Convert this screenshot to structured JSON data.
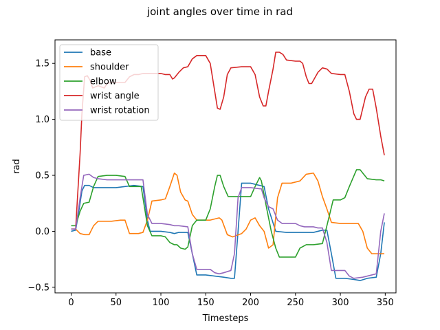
{
  "chart_data": {
    "type": "line",
    "title": "joint angles over time in rad",
    "xlabel": "Timesteps",
    "ylabel": "rad",
    "xlim": [
      -18,
      362
    ],
    "ylim": [
      -0.55,
      1.71
    ],
    "xticks": [
      0,
      50,
      100,
      150,
      200,
      250,
      300,
      350
    ],
    "yticks": [
      -0.5,
      0.0,
      0.5,
      1.0,
      1.5
    ],
    "xtick_labels": [
      "0",
      "50",
      "100",
      "150",
      "200",
      "250",
      "300",
      "350"
    ],
    "ytick_labels": [
      "−0.5",
      "0.0",
      "0.5",
      "1.0",
      "1.5"
    ],
    "grid": false,
    "legend_position": "top-left",
    "series": [
      {
        "name": "base",
        "color": "#1f77b4",
        "points": [
          [
            0,
            0.0
          ],
          [
            5,
            0.01
          ],
          [
            8,
            0.15
          ],
          [
            12,
            0.36
          ],
          [
            15,
            0.41
          ],
          [
            20,
            0.41
          ],
          [
            25,
            0.39
          ],
          [
            50,
            0.39
          ],
          [
            60,
            0.4
          ],
          [
            70,
            0.41
          ],
          [
            80,
            0.4
          ],
          [
            85,
            0.1
          ],
          [
            88,
            0.0
          ],
          [
            100,
            0.0
          ],
          [
            110,
            -0.01
          ],
          [
            115,
            -0.02
          ],
          [
            120,
            -0.01
          ],
          [
            130,
            -0.01
          ],
          [
            135,
            -0.2
          ],
          [
            140,
            -0.39
          ],
          [
            150,
            -0.39
          ],
          [
            160,
            -0.4
          ],
          [
            170,
            -0.41
          ],
          [
            178,
            -0.42
          ],
          [
            182,
            -0.42
          ],
          [
            186,
            0.0
          ],
          [
            190,
            0.43
          ],
          [
            200,
            0.43
          ],
          [
            210,
            0.41
          ],
          [
            215,
            0.4
          ],
          [
            220,
            0.2
          ],
          [
            228,
            0.0
          ],
          [
            240,
            -0.01
          ],
          [
            260,
            -0.01
          ],
          [
            270,
            -0.01
          ],
          [
            280,
            0.01
          ],
          [
            285,
            0.01
          ],
          [
            290,
            -0.2
          ],
          [
            295,
            -0.42
          ],
          [
            305,
            -0.42
          ],
          [
            315,
            -0.43
          ],
          [
            322,
            -0.44
          ],
          [
            330,
            -0.42
          ],
          [
            340,
            -0.41
          ],
          [
            345,
            -0.2
          ],
          [
            349,
            0.08
          ]
        ]
      },
      {
        "name": "shoulder",
        "color": "#ff7f0e",
        "points": [
          [
            0,
            0.02
          ],
          [
            5,
            0.02
          ],
          [
            10,
            -0.02
          ],
          [
            15,
            -0.03
          ],
          [
            20,
            -0.03
          ],
          [
            25,
            0.05
          ],
          [
            30,
            0.09
          ],
          [
            45,
            0.09
          ],
          [
            55,
            0.1
          ],
          [
            60,
            0.1
          ],
          [
            65,
            -0.02
          ],
          [
            75,
            -0.02
          ],
          [
            80,
            -0.01
          ],
          [
            85,
            0.1
          ],
          [
            90,
            0.27
          ],
          [
            100,
            0.28
          ],
          [
            105,
            0.29
          ],
          [
            110,
            0.4
          ],
          [
            115,
            0.52
          ],
          [
            118,
            0.5
          ],
          [
            122,
            0.35
          ],
          [
            127,
            0.28
          ],
          [
            130,
            0.27
          ],
          [
            135,
            0.15
          ],
          [
            140,
            0.1
          ],
          [
            155,
            0.1
          ],
          [
            160,
            0.11
          ],
          [
            165,
            0.12
          ],
          [
            168,
            0.1
          ],
          [
            174,
            -0.03
          ],
          [
            180,
            -0.05
          ],
          [
            190,
            -0.02
          ],
          [
            195,
            0.02
          ],
          [
            200,
            0.1
          ],
          [
            205,
            0.12
          ],
          [
            210,
            0.05
          ],
          [
            215,
            0.0
          ],
          [
            220,
            -0.15
          ],
          [
            225,
            -0.12
          ],
          [
            230,
            0.3
          ],
          [
            235,
            0.43
          ],
          [
            245,
            0.43
          ],
          [
            250,
            0.44
          ],
          [
            255,
            0.45
          ],
          [
            262,
            0.51
          ],
          [
            270,
            0.52
          ],
          [
            275,
            0.45
          ],
          [
            280,
            0.31
          ],
          [
            285,
            0.2
          ],
          [
            290,
            0.08
          ],
          [
            300,
            0.07
          ],
          [
            310,
            0.07
          ],
          [
            315,
            0.07
          ],
          [
            320,
            0.07
          ],
          [
            325,
            0.0
          ],
          [
            330,
            -0.15
          ],
          [
            335,
            -0.2
          ],
          [
            349,
            -0.2
          ]
        ]
      },
      {
        "name": "elbow",
        "color": "#2ca02c",
        "points": [
          [
            0,
            0.05
          ],
          [
            5,
            0.05
          ],
          [
            10,
            0.18
          ],
          [
            14,
            0.25
          ],
          [
            20,
            0.26
          ],
          [
            25,
            0.4
          ],
          [
            30,
            0.49
          ],
          [
            40,
            0.5
          ],
          [
            50,
            0.5
          ],
          [
            60,
            0.49
          ],
          [
            65,
            0.4
          ],
          [
            70,
            0.4
          ],
          [
            78,
            0.4
          ],
          [
            85,
            0.05
          ],
          [
            90,
            -0.04
          ],
          [
            100,
            -0.04
          ],
          [
            105,
            -0.05
          ],
          [
            110,
            -0.1
          ],
          [
            115,
            -0.12
          ],
          [
            118,
            -0.12
          ],
          [
            122,
            -0.15
          ],
          [
            127,
            -0.16
          ],
          [
            130,
            -0.14
          ],
          [
            135,
            0.05
          ],
          [
            140,
            0.1
          ],
          [
            150,
            0.1
          ],
          [
            155,
            0.2
          ],
          [
            160,
            0.4
          ],
          [
            163,
            0.5
          ],
          [
            166,
            0.5
          ],
          [
            170,
            0.4
          ],
          [
            175,
            0.31
          ],
          [
            190,
            0.31
          ],
          [
            200,
            0.31
          ],
          [
            205,
            0.4
          ],
          [
            210,
            0.48
          ],
          [
            212,
            0.45
          ],
          [
            218,
            0.2
          ],
          [
            223,
            0.0
          ],
          [
            228,
            -0.15
          ],
          [
            232,
            -0.23
          ],
          [
            250,
            -0.23
          ],
          [
            255,
            -0.15
          ],
          [
            262,
            -0.12
          ],
          [
            270,
            -0.12
          ],
          [
            280,
            -0.11
          ],
          [
            285,
            0.05
          ],
          [
            292,
            0.28
          ],
          [
            300,
            0.28
          ],
          [
            305,
            0.3
          ],
          [
            310,
            0.4
          ],
          [
            318,
            0.55
          ],
          [
            322,
            0.55
          ],
          [
            330,
            0.47
          ],
          [
            340,
            0.46
          ],
          [
            345,
            0.46
          ],
          [
            349,
            0.45
          ]
        ]
      },
      {
        "name": "wrist angle",
        "color": "#d62728",
        "points": [
          [
            0,
            0.02
          ],
          [
            5,
            0.02
          ],
          [
            10,
            0.7
          ],
          [
            12,
            1.05
          ],
          [
            15,
            1.38
          ],
          [
            18,
            1.39
          ],
          [
            21,
            1.35
          ],
          [
            24,
            1.28
          ],
          [
            30,
            1.3
          ],
          [
            37,
            1.28
          ],
          [
            40,
            1.32
          ],
          [
            45,
            1.33
          ],
          [
            55,
            1.33
          ],
          [
            60,
            1.33
          ],
          [
            65,
            1.38
          ],
          [
            70,
            1.4
          ],
          [
            75,
            1.4
          ],
          [
            80,
            1.41
          ],
          [
            85,
            1.41
          ],
          [
            95,
            1.41
          ],
          [
            100,
            1.41
          ],
          [
            105,
            1.4
          ],
          [
            110,
            1.4
          ],
          [
            113,
            1.36
          ],
          [
            115,
            1.37
          ],
          [
            120,
            1.42
          ],
          [
            125,
            1.46
          ],
          [
            130,
            1.47
          ],
          [
            135,
            1.54
          ],
          [
            140,
            1.57
          ],
          [
            150,
            1.57
          ],
          [
            155,
            1.5
          ],
          [
            160,
            1.25
          ],
          [
            163,
            1.1
          ],
          [
            166,
            1.09
          ],
          [
            170,
            1.2
          ],
          [
            174,
            1.4
          ],
          [
            178,
            1.46
          ],
          [
            190,
            1.47
          ],
          [
            200,
            1.47
          ],
          [
            205,
            1.4
          ],
          [
            210,
            1.2
          ],
          [
            214,
            1.12
          ],
          [
            217,
            1.12
          ],
          [
            220,
            1.25
          ],
          [
            225,
            1.45
          ],
          [
            228,
            1.6
          ],
          [
            232,
            1.6
          ],
          [
            236,
            1.58
          ],
          [
            240,
            1.53
          ],
          [
            250,
            1.52
          ],
          [
            255,
            1.52
          ],
          [
            258,
            1.5
          ],
          [
            262,
            1.38
          ],
          [
            265,
            1.32
          ],
          [
            268,
            1.32
          ],
          [
            275,
            1.42
          ],
          [
            280,
            1.46
          ],
          [
            285,
            1.45
          ],
          [
            290,
            1.41
          ],
          [
            300,
            1.4
          ],
          [
            305,
            1.4
          ],
          [
            310,
            1.25
          ],
          [
            315,
            1.05
          ],
          [
            318,
            1.0
          ],
          [
            322,
            1.0
          ],
          [
            325,
            1.1
          ],
          [
            328,
            1.2
          ],
          [
            332,
            1.27
          ],
          [
            336,
            1.27
          ],
          [
            340,
            1.1
          ],
          [
            345,
            0.85
          ],
          [
            349,
            0.68
          ]
        ]
      },
      {
        "name": "wrist rotation",
        "color": "#9467bd",
        "points": [
          [
            0,
            0.02
          ],
          [
            5,
            0.02
          ],
          [
            10,
            0.3
          ],
          [
            14,
            0.5
          ],
          [
            20,
            0.51
          ],
          [
            25,
            0.48
          ],
          [
            30,
            0.47
          ],
          [
            40,
            0.46
          ],
          [
            50,
            0.46
          ],
          [
            60,
            0.46
          ],
          [
            70,
            0.46
          ],
          [
            80,
            0.46
          ],
          [
            85,
            0.15
          ],
          [
            90,
            0.07
          ],
          [
            100,
            0.07
          ],
          [
            110,
            0.06
          ],
          [
            115,
            0.05
          ],
          [
            120,
            0.05
          ],
          [
            130,
            0.04
          ],
          [
            135,
            -0.2
          ],
          [
            140,
            -0.34
          ],
          [
            150,
            -0.34
          ],
          [
            155,
            -0.34
          ],
          [
            160,
            -0.37
          ],
          [
            165,
            -0.38
          ],
          [
            170,
            -0.37
          ],
          [
            178,
            -0.35
          ],
          [
            182,
            -0.2
          ],
          [
            186,
            0.3
          ],
          [
            190,
            0.39
          ],
          [
            200,
            0.39
          ],
          [
            210,
            0.38
          ],
          [
            212,
            0.38
          ],
          [
            215,
            0.3
          ],
          [
            220,
            0.22
          ],
          [
            225,
            0.2
          ],
          [
            230,
            0.1
          ],
          [
            235,
            0.07
          ],
          [
            250,
            0.07
          ],
          [
            255,
            0.05
          ],
          [
            260,
            0.04
          ],
          [
            270,
            0.04
          ],
          [
            275,
            0.03
          ],
          [
            280,
            0.03
          ],
          [
            285,
            -0.1
          ],
          [
            290,
            -0.35
          ],
          [
            300,
            -0.35
          ],
          [
            305,
            -0.35
          ],
          [
            310,
            -0.4
          ],
          [
            315,
            -0.42
          ],
          [
            325,
            -0.41
          ],
          [
            330,
            -0.4
          ],
          [
            340,
            -0.38
          ],
          [
            345,
            0.0
          ],
          [
            349,
            0.16
          ]
        ]
      }
    ]
  }
}
